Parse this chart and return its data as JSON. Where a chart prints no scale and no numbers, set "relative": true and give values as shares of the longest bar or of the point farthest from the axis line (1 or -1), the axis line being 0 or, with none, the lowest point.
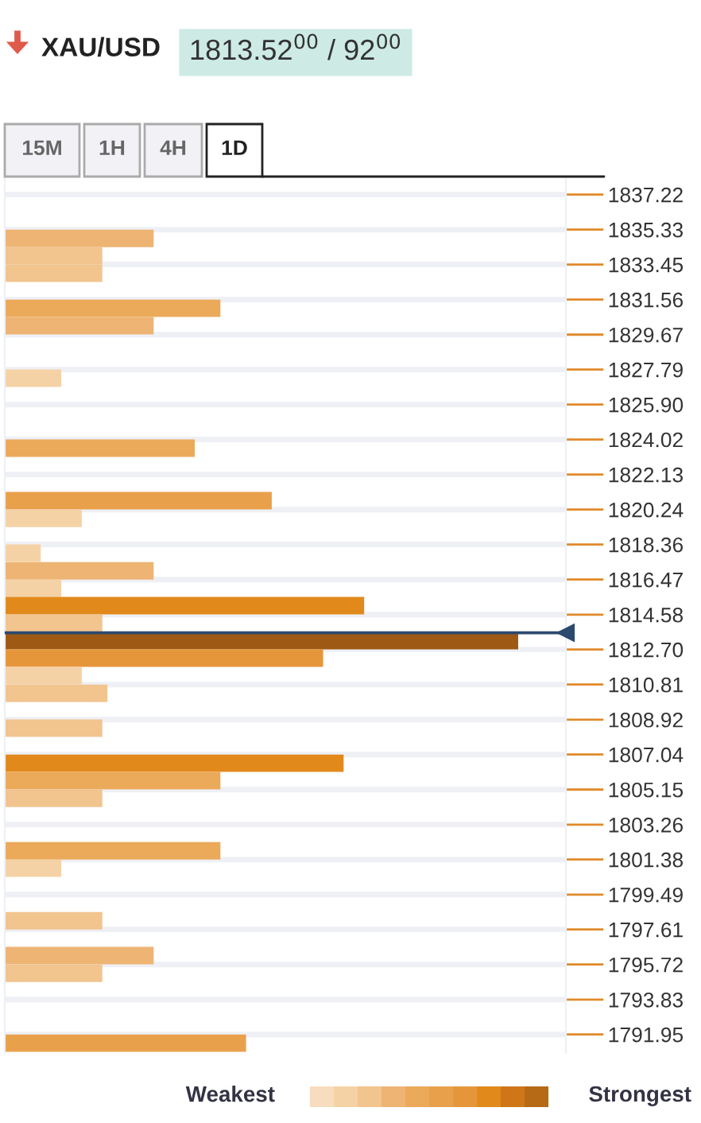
{
  "chart_data": {
    "type": "bar",
    "orientation": "horizontal",
    "relative": true,
    "title": "XAU/USD",
    "subtitle": "1813.52$^{00}$ / 92$^{00}$",
    "annotations": [
      "15M",
      "1H",
      "4H",
      "1D",
      "Weakest",
      "Strongest"
    ],
    "x": [
      1834.86,
      1833.92,
      1832.98,
      1831.09,
      1830.15,
      1827.32,
      1823.55,
      1820.72,
      1819.77,
      1817.89,
      1816.94,
      1816.0,
      1815.06,
      1814.11,
      1813.17,
      1812.23,
      1811.29,
      1810.34,
      1808.46,
      1806.57,
      1805.63,
      1804.68,
      1801.85,
      1800.91,
      1798.08,
      1796.2,
      1795.25,
      1791.48
    ],
    "values": [
      0.29,
      0.19,
      0.19,
      0.42,
      0.29,
      0.11,
      0.37,
      0.52,
      0.15,
      0.07,
      0.29,
      0.11,
      0.7,
      0.19,
      1,
      0.62,
      0.15,
      0.2,
      0.19,
      0.66,
      0.42,
      0.19,
      0.42,
      0.11,
      0.19,
      0.29,
      0.19,
      0.47
    ],
    "colors": [
      "#eeb473",
      "#f2c48e",
      "#f2c48e",
      "#eba95a",
      "#eeb473",
      "#f5d2a5",
      "#eba95a",
      "#e9a04b",
      "#f5d2a5",
      "#f5d2a5",
      "#eeb473",
      "#f5d2a5",
      "#e2891c",
      "#f2c48e",
      "#9e5a14",
      "#e6963a",
      "#f5d2a5",
      "#f2c48e",
      "#f2c48e",
      "#e2891c",
      "#eba95a",
      "#f2c48e",
      "#eba95a",
      "#f5d2a5",
      "#f2c48e",
      "#eeb473",
      "#f2c48e",
      "#e9a04b"
    ],
    "ylim": [
      1790.95,
      1838.19
    ],
    "yticks": [
      1837.22,
      1835.33,
      1833.45,
      1831.56,
      1829.67,
      1827.79,
      {
        "value": 1825.9,
        "label": "1825.90"
      },
      1824.02,
      1822.13,
      1820.24,
      1818.36,
      1816.47,
      1814.58,
      {
        "value": 1812.7,
        "label": "1812.70"
      },
      1810.81,
      1808.92,
      1807.04,
      1805.15,
      1803.26,
      1801.38,
      1799.49,
      1797.61,
      1795.72,
      1793.83,
      1791.95
    ],
    "ref_lines": [
      {
        "axis": "y",
        "value": 1813.6,
        "color": "#2c4a6e"
      }
    ],
    "grid": "y",
    "legend": false
  }
}
